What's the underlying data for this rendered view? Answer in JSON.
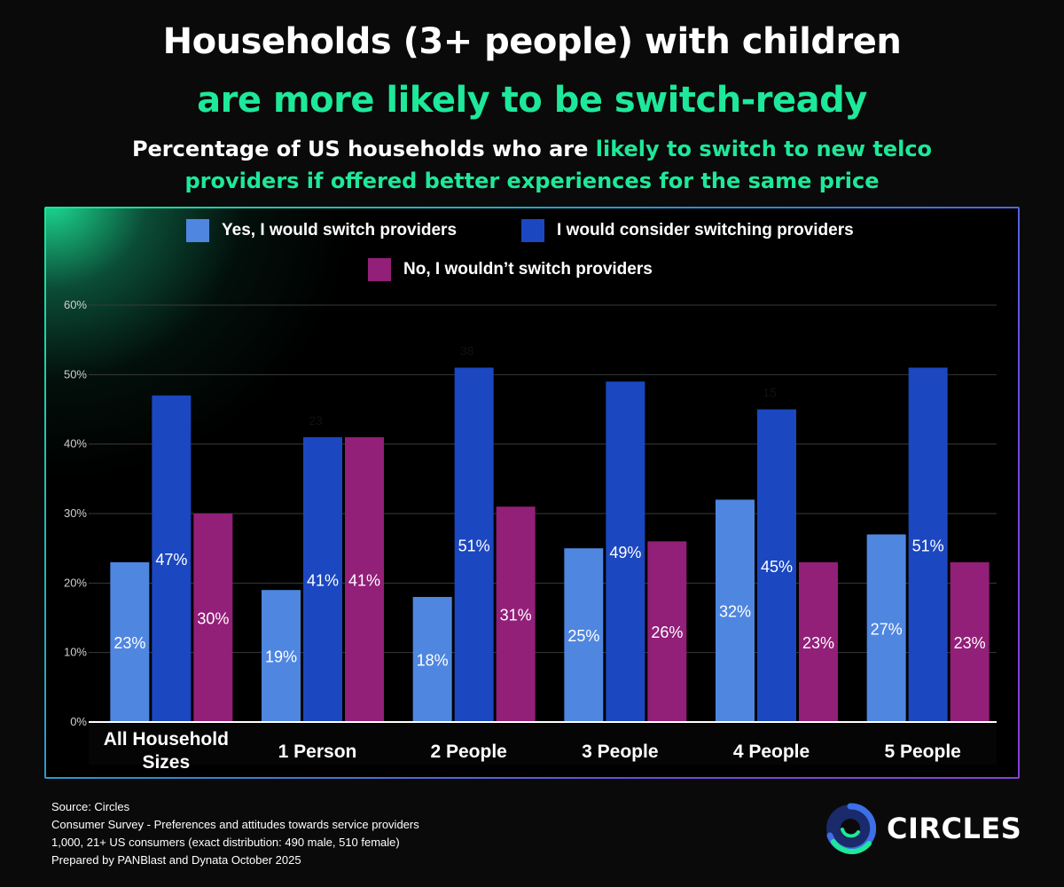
{
  "header": {
    "title_line1": "Households (3+ people) with children",
    "title_line2": "are more likely to be switch-ready",
    "subtitle_part1": "Percentage of US households who are ",
    "subtitle_highlight": "likely to switch to new telco providers if offered better experiences for the same price"
  },
  "legend": {
    "items": [
      {
        "label": "Yes, I would switch providers",
        "color": "#4f86e0"
      },
      {
        "label": "I would consider switching providers",
        "color": "#1b47c0"
      },
      {
        "label": "No, I wouldn’t switch providers",
        "color": "#921f78"
      }
    ]
  },
  "chart_data": {
    "type": "bar",
    "title": "Percentage of US households who are likely to switch to new telco providers if offered better experiences for the same price",
    "categories": [
      [
        "All Household",
        "Sizes"
      ],
      [
        "1 Person"
      ],
      [
        "2 People"
      ],
      [
        "3 People"
      ],
      [
        "4 People"
      ],
      [
        "5 People"
      ]
    ],
    "series": [
      {
        "name": "Yes, I would switch providers",
        "values": [
          23,
          19,
          18,
          25,
          32,
          27
        ],
        "color": "#4f86e0"
      },
      {
        "name": "I would consider switching providers",
        "values": [
          47,
          41,
          51,
          49,
          45,
          51
        ],
        "color": "#1b47c0"
      },
      {
        "name": "No, I wouldn’t switch providers",
        "values": [
          30,
          41,
          31,
          26,
          23,
          23
        ],
        "color": "#921f78"
      }
    ],
    "ylim": [
      0,
      60
    ],
    "yticks": [
      0,
      10,
      20,
      30,
      40,
      50,
      60
    ],
    "ytick_suffix": "%",
    "value_suffix": "%",
    "stray_labels": [
      {
        "category_index": 1,
        "text": "23"
      },
      {
        "category_index": 2,
        "text": "38"
      },
      {
        "category_index": 4,
        "text": "15"
      }
    ],
    "xlabel": "",
    "ylabel": ""
  },
  "footer": {
    "lines": [
      "Source: Circles",
      "Consumer Survey - Preferences and attitudes towards service providers",
      "1,000, 21+ US consumers (exact distribution: 490 male, 510 female)",
      "Prepared by PANBlast and Dynata October 2025"
    ]
  },
  "brand": {
    "name": "CIRCLES",
    "colors": {
      "accent": "#1ee89a",
      "ring": "#3d6fe6"
    }
  }
}
